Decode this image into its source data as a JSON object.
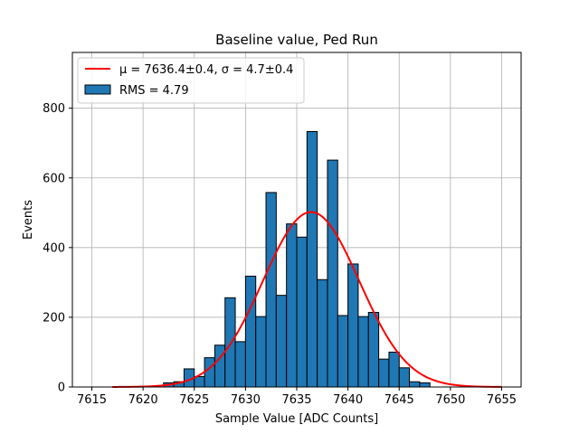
{
  "chart_data": {
    "type": "bar",
    "title": "Baseline value, Ped Run",
    "xlabel": "Sample Value [ADC Counts]",
    "ylabel": "Events",
    "xlim": [
      7613.1,
      7656.9
    ],
    "ylim": [
      0,
      960
    ],
    "xticks": [
      7615,
      7620,
      7625,
      7630,
      7635,
      7640,
      7645,
      7650,
      7655
    ],
    "yticks": [
      0,
      200,
      400,
      600,
      800
    ],
    "grid": true,
    "legend_position": "top-left",
    "bin_width": 1,
    "bins": [
      {
        "x0": 7622,
        "value": 12
      },
      {
        "x0": 7623,
        "value": 15
      },
      {
        "x0": 7624,
        "value": 52
      },
      {
        "x0": 7625,
        "value": 30
      },
      {
        "x0": 7626,
        "value": 84
      },
      {
        "x0": 7627,
        "value": 120
      },
      {
        "x0": 7628,
        "value": 256
      },
      {
        "x0": 7629,
        "value": 130
      },
      {
        "x0": 7630,
        "value": 318
      },
      {
        "x0": 7631,
        "value": 202
      },
      {
        "x0": 7632,
        "value": 558
      },
      {
        "x0": 7633,
        "value": 263
      },
      {
        "x0": 7634,
        "value": 468
      },
      {
        "x0": 7635,
        "value": 430
      },
      {
        "x0": 7636,
        "value": 733
      },
      {
        "x0": 7637,
        "value": 308
      },
      {
        "x0": 7638,
        "value": 651
      },
      {
        "x0": 7639,
        "value": 205
      },
      {
        "x0": 7640,
        "value": 353
      },
      {
        "x0": 7641,
        "value": 202
      },
      {
        "x0": 7642,
        "value": 214
      },
      {
        "x0": 7643,
        "value": 80
      },
      {
        "x0": 7644,
        "value": 100
      },
      {
        "x0": 7645,
        "value": 55
      },
      {
        "x0": 7646,
        "value": 15
      },
      {
        "x0": 7647,
        "value": 12
      }
    ],
    "fit": {
      "mu": 7636.4,
      "sigma": 4.7,
      "amplitude": 502,
      "x_range": [
        7617,
        7655
      ]
    },
    "series": [
      {
        "name": "μ = 7636.4±0.4, σ = 4.7±0.4",
        "kind": "line",
        "color": "#ff0000"
      },
      {
        "name": "RMS = 4.79",
        "kind": "bar",
        "color": "#1f77b4"
      }
    ]
  }
}
